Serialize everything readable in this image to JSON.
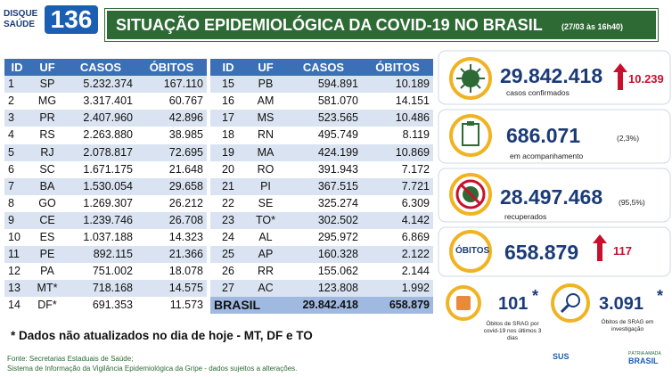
{
  "header": {
    "logo": {
      "line1": "DISQUE",
      "line2": "SAÚDE",
      "number": "136"
    },
    "title": "SITUAÇÃO EPIDEMIOLÓGICA DA COVID-19 NO BRASIL",
    "timestamp": "(27/03 às 16h40)"
  },
  "tables": [
    {
      "columns": [
        "ID",
        "UF",
        "CASOS",
        "ÓBITOS"
      ],
      "rows": [
        [
          1,
          "SP",
          "5.232.374",
          "167.110"
        ],
        [
          2,
          "MG",
          "3.317.401",
          "60.767"
        ],
        [
          3,
          "PR",
          "2.407.960",
          "42.896"
        ],
        [
          4,
          "RS",
          "2.263.880",
          "38.985"
        ],
        [
          5,
          "RJ",
          "2.078.817",
          "72.695"
        ],
        [
          6,
          "SC",
          "1.671.175",
          "21.648"
        ],
        [
          7,
          "BA",
          "1.530.054",
          "29.658"
        ],
        [
          8,
          "GO",
          "1.269.307",
          "26.212"
        ],
        [
          9,
          "CE",
          "1.239.746",
          "26.708"
        ],
        [
          10,
          "ES",
          "1.037.188",
          "14.323"
        ],
        [
          11,
          "PE",
          "892.115",
          "21.366"
        ],
        [
          12,
          "PA",
          "751.002",
          "18.078"
        ],
        [
          13,
          "MT*",
          "718.168",
          "14.575"
        ],
        [
          14,
          "DF*",
          "691.353",
          "11.573"
        ]
      ]
    },
    {
      "columns": [
        "ID",
        "UF",
        "CASOS",
        "ÓBITOS"
      ],
      "rows": [
        [
          15,
          "PB",
          "594.891",
          "10.189"
        ],
        [
          16,
          "AM",
          "581.070",
          "14.151"
        ],
        [
          17,
          "MS",
          "523.565",
          "10.486"
        ],
        [
          18,
          "RN",
          "495.749",
          "8.119"
        ],
        [
          19,
          "MA",
          "424.199",
          "10.869"
        ],
        [
          20,
          "RO",
          "391.943",
          "7.172"
        ],
        [
          21,
          "PI",
          "367.515",
          "7.721"
        ],
        [
          22,
          "SE",
          "325.274",
          "6.309"
        ],
        [
          23,
          "TO*",
          "302.502",
          "4.142"
        ],
        [
          24,
          "AL",
          "295.972",
          "6.869"
        ],
        [
          25,
          "AP",
          "160.328",
          "2.122"
        ],
        [
          26,
          "RR",
          "155.062",
          "2.144"
        ],
        [
          27,
          "AC",
          "123.808",
          "1.992"
        ]
      ],
      "total": [
        "BRASIL",
        "29.842.418",
        "658.879"
      ]
    }
  ],
  "stats": {
    "confirmed": {
      "value": "29.842.418",
      "label": "casos confirmados",
      "new": "10.239"
    },
    "monitoring": {
      "value": "686.071",
      "label": "em acompanhamento",
      "share": "(2,3%)"
    },
    "recovered": {
      "value": "28.497.468",
      "label": "recuperados",
      "share": "(95,5%)"
    },
    "deaths": {
      "title": "ÓBITOS",
      "value": "658.879",
      "new": "117"
    },
    "srag_recent": {
      "value": "101",
      "mark": "*",
      "label": "Óbitos de SRAG por covid-19 nos últimos 3 dias"
    },
    "srag_investigation": {
      "value": "3.091",
      "mark": "*",
      "label": "Óbitos de SRAG em investigação"
    }
  },
  "note": "* Dados não atualizados no dia de hoje - MT, DF e TO",
  "source": [
    "Fonte: Secretarias Estaduais de Saúde;",
    "Sistema de Informação da Vigilância Epidemiológica da Gripe - dados sujeitos a alterações."
  ],
  "logos": {
    "sus": "SUS",
    "gov1": "PÁTRIA AMADA",
    "gov2": "BRASIL"
  }
}
